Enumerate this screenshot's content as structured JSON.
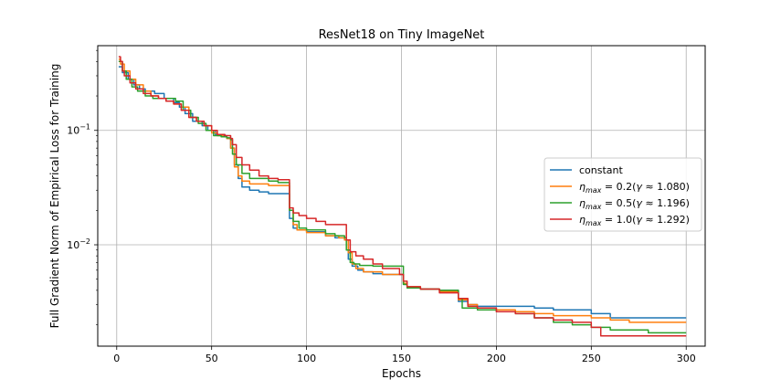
{
  "chart_data": {
    "type": "line",
    "title": "ResNet18 on Tiny ImageNet",
    "xlabel": "Epochs",
    "ylabel": "Full Gradient Norm of Empirical Loss for Training",
    "xlim": [
      -10,
      310
    ],
    "ylim": [
      0.0013,
      0.55
    ],
    "yscale": "log",
    "grid": true,
    "legend_position": "center-right",
    "xticks": [
      0,
      50,
      100,
      150,
      200,
      250,
      300
    ],
    "xtick_labels": [
      "0",
      "50",
      "100",
      "150",
      "200",
      "250",
      "300"
    ],
    "yticks": [
      0.1,
      0.01
    ],
    "ytick_labels": [
      {
        "base": "10",
        "exp": "−1"
      },
      {
        "base": "10",
        "exp": "−2"
      }
    ],
    "series": [
      {
        "name": "constant",
        "legend": {
          "text": "constant"
        },
        "color": "#1f77b4",
        "x": [
          1,
          3,
          6,
          9,
          12,
          15,
          20,
          25,
          30,
          33,
          36,
          40,
          45,
          48,
          52,
          55,
          58,
          60,
          62,
          64,
          66,
          70,
          75,
          80,
          85,
          89,
          91,
          93,
          95,
          100,
          110,
          115,
          120,
          122,
          124,
          127,
          130,
          135,
          140,
          149,
          151,
          153,
          160,
          170,
          180,
          185,
          190,
          200,
          210,
          220,
          230,
          240,
          250,
          260,
          270,
          280,
          290,
          300
        ],
        "y": [
          0.36,
          0.32,
          0.28,
          0.25,
          0.23,
          0.22,
          0.21,
          0.19,
          0.175,
          0.16,
          0.14,
          0.12,
          0.11,
          0.1,
          0.092,
          0.09,
          0.085,
          0.07,
          0.05,
          0.038,
          0.032,
          0.03,
          0.029,
          0.028,
          0.028,
          0.028,
          0.017,
          0.014,
          0.0135,
          0.013,
          0.012,
          0.0115,
          0.011,
          0.0075,
          0.0065,
          0.006,
          0.0058,
          0.0056,
          0.0055,
          0.0055,
          0.0045,
          0.0042,
          0.0041,
          0.004,
          0.0032,
          0.003,
          0.0029,
          0.0029,
          0.0029,
          0.0028,
          0.0027,
          0.0027,
          0.0025,
          0.0023,
          0.0023,
          0.0023,
          0.0023,
          0.0023
        ]
      },
      {
        "name": "eta 0.2",
        "legend": {
          "eta": "η",
          "sub": "max",
          "rest": " = 0.2(",
          "gamma": "γ",
          "val": " ≈ 1.080)"
        },
        "color": "#ff7f0e",
        "x": [
          1,
          2,
          4,
          7,
          10,
          14,
          18,
          22,
          26,
          30,
          34,
          38,
          42,
          46,
          50,
          53,
          56,
          58,
          60,
          62,
          64,
          66,
          70,
          80,
          85,
          89,
          91,
          93,
          95,
          100,
          110,
          117,
          120,
          122,
          124,
          126,
          130,
          140,
          149,
          151,
          153,
          160,
          170,
          180,
          185,
          190,
          200,
          210,
          220,
          230,
          240,
          250,
          260,
          270,
          280,
          290,
          300
        ],
        "y": [
          0.42,
          0.38,
          0.33,
          0.28,
          0.25,
          0.22,
          0.2,
          0.19,
          0.18,
          0.17,
          0.16,
          0.13,
          0.12,
          0.11,
          0.095,
          0.09,
          0.088,
          0.085,
          0.07,
          0.048,
          0.04,
          0.036,
          0.034,
          0.033,
          0.033,
          0.033,
          0.02,
          0.015,
          0.0135,
          0.0128,
          0.012,
          0.0115,
          0.011,
          0.0085,
          0.0068,
          0.0062,
          0.0058,
          0.0055,
          0.0055,
          0.0046,
          0.0043,
          0.0041,
          0.0039,
          0.0033,
          0.003,
          0.0028,
          0.0027,
          0.0026,
          0.0025,
          0.0024,
          0.0024,
          0.0023,
          0.0022,
          0.0021,
          0.0021,
          0.0021,
          0.0021
        ]
      },
      {
        "name": "eta 0.5",
        "legend": {
          "eta": "η",
          "sub": "max",
          "rest": " = 0.5(",
          "gamma": "γ",
          "val": " ≈ 1.196)"
        },
        "color": "#2ca02c",
        "x": [
          1,
          3,
          5,
          8,
          11,
          15,
          19,
          23,
          27,
          31,
          35,
          39,
          43,
          47,
          51,
          55,
          58,
          60,
          61,
          63,
          66,
          70,
          80,
          85,
          89,
          91,
          93,
          96,
          100,
          110,
          115,
          120,
          121,
          123,
          125,
          128,
          135,
          140,
          149,
          151,
          153,
          160,
          170,
          180,
          182,
          190,
          200,
          210,
          220,
          230,
          240,
          250,
          260,
          270,
          280,
          290,
          300
        ],
        "y": [
          0.4,
          0.33,
          0.28,
          0.24,
          0.22,
          0.2,
          0.19,
          0.19,
          0.19,
          0.18,
          0.15,
          0.13,
          0.115,
          0.1,
          0.09,
          0.088,
          0.086,
          0.083,
          0.062,
          0.05,
          0.042,
          0.038,
          0.036,
          0.035,
          0.035,
          0.02,
          0.016,
          0.014,
          0.0135,
          0.0125,
          0.012,
          0.0115,
          0.009,
          0.007,
          0.0068,
          0.0066,
          0.0065,
          0.0065,
          0.0065,
          0.0045,
          0.0042,
          0.0041,
          0.004,
          0.0034,
          0.0028,
          0.0027,
          0.0026,
          0.0025,
          0.0023,
          0.0021,
          0.002,
          0.0019,
          0.0018,
          0.0018,
          0.0017,
          0.0017,
          0.0017
        ]
      },
      {
        "name": "eta 1.0",
        "legend": {
          "eta": "η",
          "sub": "max",
          "rest": " = 1.0(",
          "gamma": "γ",
          "val": " ≈ 1.292)"
        },
        "color": "#d62728",
        "x": [
          1,
          2,
          3,
          4,
          7,
          10,
          14,
          18,
          22,
          26,
          30,
          34,
          38,
          42,
          46,
          50,
          53,
          57,
          60,
          61,
          63,
          66,
          70,
          75,
          80,
          85,
          89,
          91,
          93,
          96,
          100,
          105,
          110,
          115,
          120,
          121,
          123,
          126,
          130,
          135,
          140,
          149,
          151,
          153,
          160,
          170,
          180,
          185,
          190,
          200,
          210,
          220,
          230,
          240,
          250,
          255,
          270,
          280,
          290,
          300
        ],
        "y": [
          0.44,
          0.4,
          0.33,
          0.3,
          0.26,
          0.23,
          0.21,
          0.2,
          0.19,
          0.18,
          0.17,
          0.15,
          0.13,
          0.12,
          0.11,
          0.1,
          0.092,
          0.09,
          0.085,
          0.075,
          0.058,
          0.05,
          0.045,
          0.04,
          0.038,
          0.037,
          0.037,
          0.021,
          0.019,
          0.018,
          0.017,
          0.016,
          0.015,
          0.015,
          0.015,
          0.011,
          0.0087,
          0.008,
          0.0075,
          0.0068,
          0.0062,
          0.0055,
          0.0048,
          0.0043,
          0.0041,
          0.0038,
          0.0034,
          0.0029,
          0.0028,
          0.0026,
          0.0025,
          0.0023,
          0.0022,
          0.0021,
          0.0019,
          0.0016,
          0.0016,
          0.0016,
          0.0016,
          0.0016
        ]
      }
    ]
  }
}
